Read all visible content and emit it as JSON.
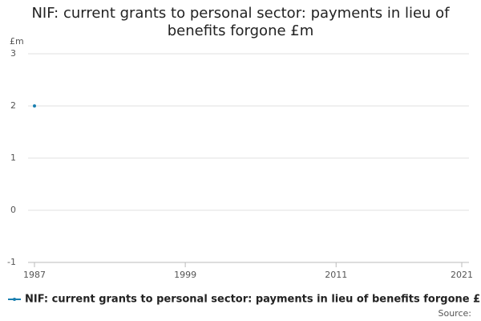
{
  "chart_data": {
    "type": "line",
    "title": "NIF: current grants to personal sector: payments in lieu of benefits forgone £m",
    "y_axis_label": "£m",
    "x": [
      1987
    ],
    "series": [
      {
        "name": "NIF: current grants to personal sector: payments in lieu of benefits forgone £m",
        "color": "#1a7fb0",
        "values": [
          2
        ]
      }
    ],
    "xlim": [
      1987,
      2021
    ],
    "xticks": [
      1987,
      1999,
      2011,
      2021
    ],
    "ylim": [
      -1,
      3
    ],
    "yticks": [
      -1,
      0,
      1,
      2,
      3
    ],
    "grid": true,
    "legend": "bottom",
    "source": "Source:"
  }
}
